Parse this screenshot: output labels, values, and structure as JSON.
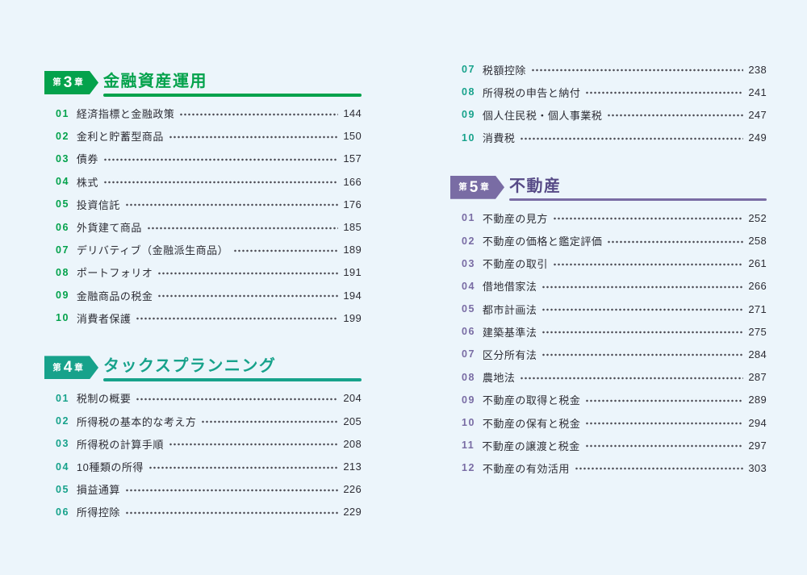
{
  "colors": {
    "background": "#ecf5fb",
    "ch3": "#04a24c",
    "ch4": "#17a28b",
    "ch5_accent": "#796ca4",
    "ch5_title": "#574b87",
    "item_text": "#2d2d35",
    "dots": "#4c4c54",
    "badge_text": "#ffffff"
  },
  "columns": {
    "left": [
      {
        "type": "header",
        "badge_prefix": "第",
        "badge_number": "3",
        "badge_suffix": "章",
        "title": "金融資産運用",
        "accent": "ch3",
        "title_color": "ch3"
      },
      {
        "type": "items",
        "accent": "ch3",
        "items": [
          {
            "num": "01",
            "label": "経済指標と金融政策",
            "page": "144"
          },
          {
            "num": "02",
            "label": "金利と貯蓄型商品",
            "page": "150"
          },
          {
            "num": "03",
            "label": "債券",
            "page": "157"
          },
          {
            "num": "04",
            "label": "株式",
            "page": "166"
          },
          {
            "num": "05",
            "label": "投資信託",
            "page": "176"
          },
          {
            "num": "06",
            "label": "外貨建て商品",
            "page": "185"
          },
          {
            "num": "07",
            "label": "デリバティブ（金融派生商品）",
            "page": "189"
          },
          {
            "num": "08",
            "label": "ポートフォリオ",
            "page": "191"
          },
          {
            "num": "09",
            "label": "金融商品の税金",
            "page": "194"
          },
          {
            "num": "10",
            "label": "消費者保護",
            "page": "199"
          }
        ]
      },
      {
        "type": "header",
        "badge_prefix": "第",
        "badge_number": "4",
        "badge_suffix": "章",
        "title": "タックスプランニング",
        "accent": "ch4",
        "title_color": "ch4"
      },
      {
        "type": "items",
        "accent": "ch4",
        "items": [
          {
            "num": "01",
            "label": "税制の概要",
            "page": "204"
          },
          {
            "num": "02",
            "label": "所得税の基本的な考え方",
            "page": "205"
          },
          {
            "num": "03",
            "label": "所得税の計算手順",
            "page": "208"
          },
          {
            "num": "04",
            "label": "10種類の所得",
            "page": "213"
          },
          {
            "num": "05",
            "label": "損益通算",
            "page": "226"
          },
          {
            "num": "06",
            "label": "所得控除",
            "page": "229"
          }
        ]
      }
    ],
    "right": [
      {
        "type": "items",
        "accent": "ch4",
        "items": [
          {
            "num": "07",
            "label": "税額控除",
            "page": "238"
          },
          {
            "num": "08",
            "label": "所得税の申告と納付",
            "page": "241"
          },
          {
            "num": "09",
            "label": "個人住民税・個人事業税",
            "page": "247"
          },
          {
            "num": "10",
            "label": "消費税",
            "page": "249"
          }
        ]
      },
      {
        "type": "header",
        "badge_prefix": "第",
        "badge_number": "5",
        "badge_suffix": "章",
        "title": "不動産",
        "accent": "ch5_accent",
        "title_color": "ch5_title"
      },
      {
        "type": "items",
        "accent": "ch5_accent",
        "items": [
          {
            "num": "01",
            "label": "不動産の見方",
            "page": "252"
          },
          {
            "num": "02",
            "label": "不動産の価格と鑑定評価",
            "page": "258"
          },
          {
            "num": "03",
            "label": "不動産の取引",
            "page": "261"
          },
          {
            "num": "04",
            "label": "借地借家法",
            "page": "266"
          },
          {
            "num": "05",
            "label": "都市計画法",
            "page": "271"
          },
          {
            "num": "06",
            "label": "建築基準法",
            "page": "275"
          },
          {
            "num": "07",
            "label": "区分所有法",
            "page": "284"
          },
          {
            "num": "08",
            "label": "農地法",
            "page": "287"
          },
          {
            "num": "09",
            "label": "不動産の取得と税金",
            "page": "289"
          },
          {
            "num": "10",
            "label": "不動産の保有と税金",
            "page": "294"
          },
          {
            "num": "11",
            "label": "不動産の譲渡と税金",
            "page": "297"
          },
          {
            "num": "12",
            "label": "不動産の有効活用",
            "page": "303"
          }
        ]
      }
    ]
  }
}
